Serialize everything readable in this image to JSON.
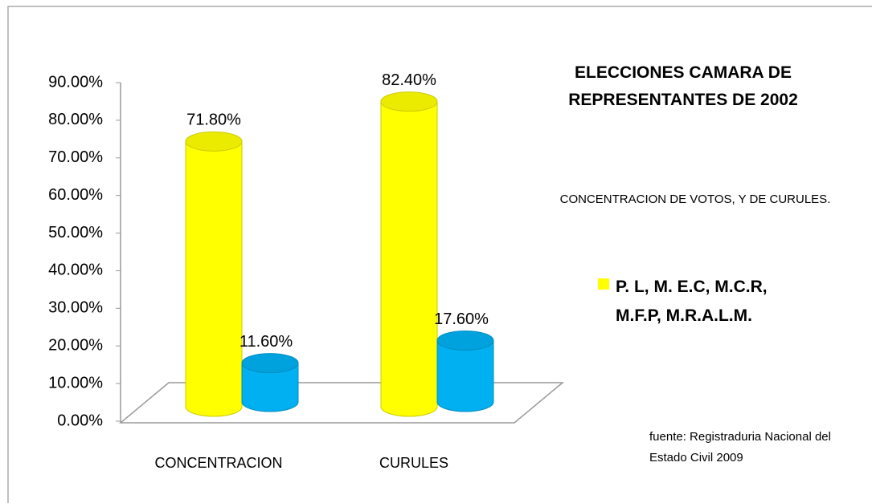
{
  "chart_data": {
    "type": "bar3d",
    "title": "ELECCIONES CAMARA DE REPRESENTANTES DE 2002",
    "subtitle": "CONCENTRACION DE VOTOS, Y DE CURULES.",
    "annotation": "fuente: Registraduria Nacional del Estado Civil 2009",
    "categories": [
      "CONCENTRACION",
      "CURULES"
    ],
    "series": [
      {
        "name": "P. L, M. E.C, M.C.R, M.F.P, M.R.A.L.M.",
        "color": "#ffff00",
        "values": [
          71.8,
          82.4
        ],
        "value_labels": [
          "71.80%",
          "82.40%"
        ]
      },
      {
        "color": "#00b0f0",
        "values": [
          11.6,
          17.6
        ],
        "value_labels": [
          "11.60%",
          "17.60%"
        ]
      }
    ],
    "ylim": [
      0,
      90
    ],
    "yticks": [
      {
        "value": 0,
        "label": "0.00%"
      },
      {
        "value": 10,
        "label": "10.00%"
      },
      {
        "value": 20,
        "label": "20.00%"
      },
      {
        "value": 30,
        "label": "30.00%"
      },
      {
        "value": 40,
        "label": "40.00%"
      },
      {
        "value": 50,
        "label": "50.00%"
      },
      {
        "value": 60,
        "label": "60.00%"
      },
      {
        "value": 70,
        "label": "70.00%"
      },
      {
        "value": 80,
        "label": "80.00%"
      },
      {
        "value": 90,
        "label": "90.00%"
      }
    ],
    "legend": "right"
  }
}
